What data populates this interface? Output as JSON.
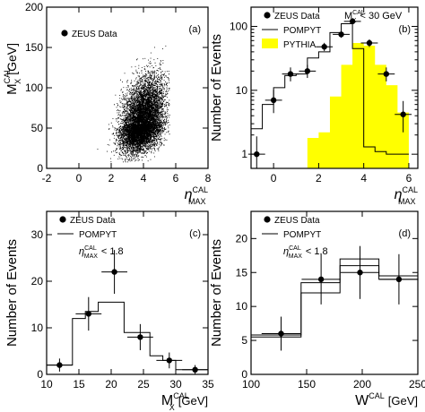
{
  "chart_data": [
    {
      "id": "a",
      "type": "scatter",
      "panel_label": "(a)",
      "xlabel": "η",
      "xlabel_sup": "CAL",
      "xlabel_sub": "MAX",
      "xlabel_unit": "",
      "ylabel": "M",
      "ylabel_sup": "CAL",
      "ylabel_sub": "X",
      "ylabel_unit": "[GeV]",
      "xlim": [
        -2,
        8
      ],
      "ylim": [
        0,
        200
      ],
      "xticks": [
        -2,
        0,
        2,
        4,
        6,
        8
      ],
      "yticks": [
        0,
        50,
        100,
        150,
        200
      ],
      "ylog": false,
      "legend": [
        {
          "label": "ZEUS Data",
          "marker": "dot"
        }
      ],
      "annotation": null,
      "density": {
        "description_values": {
          "n_points": 9000,
          "x_mean": 3.9,
          "x_sd": 0.65,
          "y_mean": 55,
          "y_sd": 22,
          "correlation": 0.35,
          "x_range": [
            -1,
            5.6
          ],
          "y_range": [
            8,
            170
          ]
        }
      },
      "series": []
    },
    {
      "id": "b",
      "type": "bar",
      "panel_label": "(b)",
      "xlabel": "η",
      "xlabel_sup": "CAL",
      "xlabel_sub": "MAX",
      "xlabel_unit": "",
      "ylabel": "Number of Events",
      "ylabel_sup": "",
      "ylabel_sub": "",
      "ylabel_unit": "",
      "xlim": [
        -1,
        6.4
      ],
      "ylim": [
        0.6,
        200
      ],
      "xticks": [
        0,
        2,
        4,
        6
      ],
      "yticks": [
        1,
        10,
        100
      ],
      "ylog": true,
      "legend": [
        {
          "label": "ZEUS Data",
          "marker": "dot"
        },
        {
          "label": "POMPYT",
          "marker": "line"
        },
        {
          "label": "PYTHIA",
          "marker": "fill"
        }
      ],
      "annotation": {
        "text": "M",
        "sup": "CAL",
        "sub": "X",
        "tail": "< 30 GeV"
      },
      "series": [
        {
          "name": "ZEUS Data",
          "kind": "points",
          "x": [
            -0.75,
            0,
            0.75,
            1.5,
            2.25,
            3,
            3.5,
            4.25,
            5,
            5.75
          ],
          "y": [
            1.0,
            7.0,
            18,
            20,
            48,
            75,
            120,
            55,
            18,
            4.2
          ],
          "yerr_low": [
            0.5,
            2.6,
            4.2,
            4.4,
            6.9,
            8.6,
            11,
            7.4,
            4.2,
            2.0
          ],
          "yerr_high": [
            0.9,
            3.2,
            4.8,
            5.0,
            7.3,
            9.0,
            11,
            7.7,
            4.8,
            2.6
          ],
          "xerr": 0.375
        },
        {
          "name": "POMPYT",
          "kind": "step",
          "edges": [
            -1,
            -0.5,
            0,
            0.5,
            1,
            1.5,
            2,
            2.5,
            3,
            3.5,
            4,
            4.5,
            5,
            5.5,
            6
          ],
          "values": [
            2.5,
            6,
            11,
            17,
            18,
            32,
            40,
            80,
            110,
            45,
            1.3,
            1.1,
            1.0,
            1.0
          ]
        },
        {
          "name": "PYTHIA",
          "kind": "filled",
          "edges": [
            0.5,
            1,
            1.5,
            2,
            2.5,
            3,
            3.5,
            4,
            4.5,
            5,
            5.5,
            6
          ],
          "values": [
            0.6,
            0.6,
            1.8,
            2.2,
            8,
            25,
            55,
            50,
            25,
            12,
            4.5
          ]
        }
      ]
    },
    {
      "id": "c",
      "type": "bar",
      "panel_label": "(c)",
      "xlabel": "M",
      "xlabel_sup": "CAL",
      "xlabel_sub": "X",
      "xlabel_unit": "[GeV]",
      "ylabel": "Number of Events",
      "ylabel_sup": "",
      "ylabel_sub": "",
      "ylabel_unit": "",
      "xlim": [
        10,
        35
      ],
      "ylim": [
        0,
        35
      ],
      "xticks": [
        10,
        15,
        20,
        25,
        30,
        35
      ],
      "yticks": [
        0,
        10,
        20,
        30
      ],
      "ylog": false,
      "legend": [
        {
          "label": "ZEUS Data",
          "marker": "dot"
        },
        {
          "label": "POMPYT",
          "marker": "line"
        }
      ],
      "annotation": {
        "text": "η",
        "sup": "CAL",
        "sub": "MAX",
        "tail": "< 1.8"
      },
      "series": [
        {
          "name": "ZEUS Data",
          "kind": "points",
          "x": [
            12,
            16.5,
            20.5,
            24.5,
            29,
            33
          ],
          "y": [
            2,
            13,
            22,
            8,
            3,
            1
          ],
          "yerr_low": [
            1.4,
            3.6,
            4.7,
            2.8,
            1.7,
            1.0
          ],
          "yerr_high": [
            1.4,
            3.6,
            4.7,
            2.8,
            1.7,
            1.0
          ],
          "xerr": 2.0
        },
        {
          "name": "POMPYT",
          "kind": "step",
          "edges": [
            10,
            14,
            16,
            18,
            22,
            26,
            28,
            30,
            35
          ],
          "values": [
            2,
            12,
            13.5,
            15.5,
            9,
            4,
            3,
            1
          ]
        }
      ]
    },
    {
      "id": "d",
      "type": "bar",
      "panel_label": "(d)",
      "xlabel": "W",
      "xlabel_sup": "CAL",
      "xlabel_sub": "",
      "xlabel_unit": "[GeV]",
      "ylabel": "Number of Events",
      "ylabel_sup": "",
      "ylabel_sub": "",
      "ylabel_unit": "",
      "xlim": [
        100,
        250
      ],
      "ylim": [
        0,
        24
      ],
      "xticks": [
        100,
        150,
        200,
        250
      ],
      "yticks": [
        0,
        5,
        10,
        15,
        20
      ],
      "ylog": false,
      "legend": [
        {
          "label": "ZEUS Data",
          "marker": "dot"
        },
        {
          "label": "POMPYT",
          "marker": "line"
        }
      ],
      "annotation": {
        "text": "η",
        "sup": "CAL",
        "sub": "MAX",
        "tail": "< 1.8"
      },
      "series": [
        {
          "name": "ZEUS Data",
          "kind": "points",
          "x": [
            127,
            163,
            198,
            233
          ],
          "y": [
            6,
            14,
            15,
            14
          ],
          "yerr_low": [
            2.5,
            3.7,
            3.9,
            3.7
          ],
          "yerr_high": [
            2.5,
            3.7,
            3.9,
            3.7
          ],
          "xerr": 17.5
        },
        {
          "name": "POMPYT",
          "kind": "step",
          "edges": [
            100,
            145,
            180,
            215,
            250
          ],
          "values": [
            5.5,
            13.5,
            17,
            14.5
          ]
        },
        {
          "name": "POMPYT",
          "kind": "step",
          "edges": [
            100,
            145,
            180,
            215,
            250
          ],
          "values": [
            5.8,
            12,
            16,
            14
          ]
        }
      ]
    }
  ],
  "colors": {
    "axis": "#000000",
    "pythia_fill": "#ffff00",
    "points": "#000000"
  }
}
